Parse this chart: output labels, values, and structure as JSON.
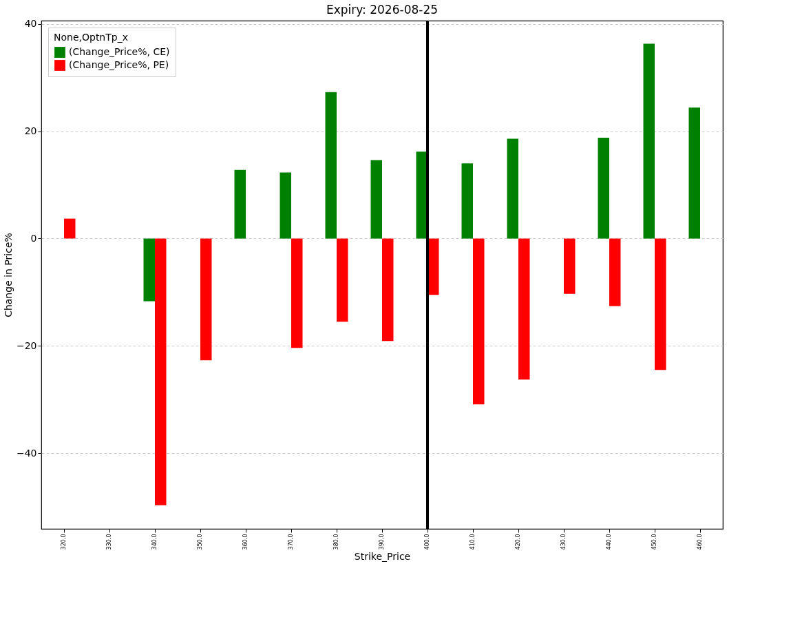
{
  "chart_data": {
    "type": "bar",
    "title": "Expiry: 2026-08-25",
    "xlabel": "Strike_Price",
    "ylabel": "Change in Price%",
    "legend_title": "None,OptnTp_x",
    "categories": [
      "320.0",
      "330.0",
      "340.0",
      "350.0",
      "360.0",
      "370.0",
      "380.0",
      "390.0",
      "400.0",
      "410.0",
      "420.0",
      "430.0",
      "440.0",
      "450.0",
      "460.0"
    ],
    "series": [
      {
        "name": "(Change_Price%, CE)",
        "color": "#008000",
        "values": [
          null,
          null,
          -11.7,
          null,
          12.8,
          12.3,
          27.3,
          14.6,
          16.2,
          14.0,
          18.6,
          null,
          18.8,
          36.3,
          24.4
        ]
      },
      {
        "name": "(Change_Price%, PE)",
        "color": "#ff0000",
        "values": [
          3.7,
          null,
          -49.7,
          -22.7,
          null,
          -20.4,
          -15.5,
          -19.1,
          -10.5,
          -30.9,
          -26.3,
          -10.3,
          -12.6,
          -24.5,
          null
        ]
      }
    ],
    "ylim": [
      -54.1,
      40.6
    ],
    "yticks": [
      -40,
      -20,
      0,
      20,
      40
    ],
    "grid": "y",
    "legend": "top left",
    "ref_lines": [
      {
        "axis": "x",
        "value": "400.0",
        "color": "#000000"
      }
    ]
  }
}
